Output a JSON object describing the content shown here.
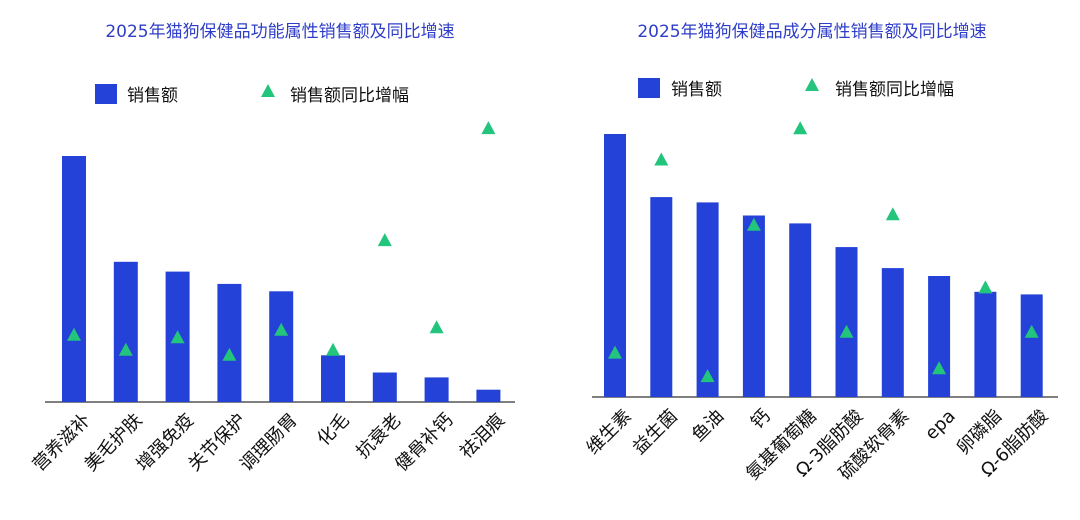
{
  "colors": {
    "bar": "#2442d8",
    "triangle": "#23c47c",
    "title": "#2f3ec8",
    "axis": "#333333",
    "text": "#111111"
  },
  "chart_data": [
    {
      "type": "bar",
      "title": "2025年猫狗保健品功能属性销售额及同比增速",
      "legend": [
        "销售额",
        "销售额同比增幅"
      ],
      "legend_position": "top",
      "grid": false,
      "categories": [
        "营养滋补",
        "美毛护肤",
        "增强免疫",
        "关节保护",
        "调理肠胃",
        "化毛",
        "抗衰老",
        "健骨补钙",
        "祛泪痕"
      ],
      "series": [
        {
          "name": "销售额",
          "type": "bar",
          "values": [
            100,
            57,
            53,
            48,
            45,
            19,
            12,
            10,
            5
          ]
        },
        {
          "name": "销售额同比增幅",
          "type": "triangle",
          "values": [
            27,
            21,
            26,
            19,
            29,
            21,
            65,
            30,
            110
          ]
        }
      ],
      "ylim_bar": [
        0,
        100
      ],
      "ylim_triangle": [
        0,
        115
      ]
    },
    {
      "type": "bar",
      "title": "2025年猫狗保健品成分属性销售额及同比增速",
      "legend": [
        "销售额",
        "销售额同比增幅"
      ],
      "legend_position": "top",
      "grid": false,
      "categories": [
        "维生素",
        "益生菌",
        "鱼油",
        "钙",
        "氨基葡萄糖",
        "Ω-3脂肪酸",
        "硫酸软骨素",
        "epa",
        "卵磷脂",
        "Ω-6脂肪酸"
      ],
      "series": [
        {
          "name": "销售额",
          "type": "bar",
          "values": [
            100,
            76,
            74,
            69,
            66,
            57,
            49,
            46,
            40,
            39
          ]
        },
        {
          "name": "销售额同比增幅",
          "type": "triangle",
          "values": [
            17,
            91,
            8,
            66,
            103,
            25,
            70,
            11,
            42,
            25
          ]
        }
      ],
      "ylim_bar": [
        0,
        100
      ],
      "ylim_triangle": [
        0,
        115
      ]
    }
  ]
}
